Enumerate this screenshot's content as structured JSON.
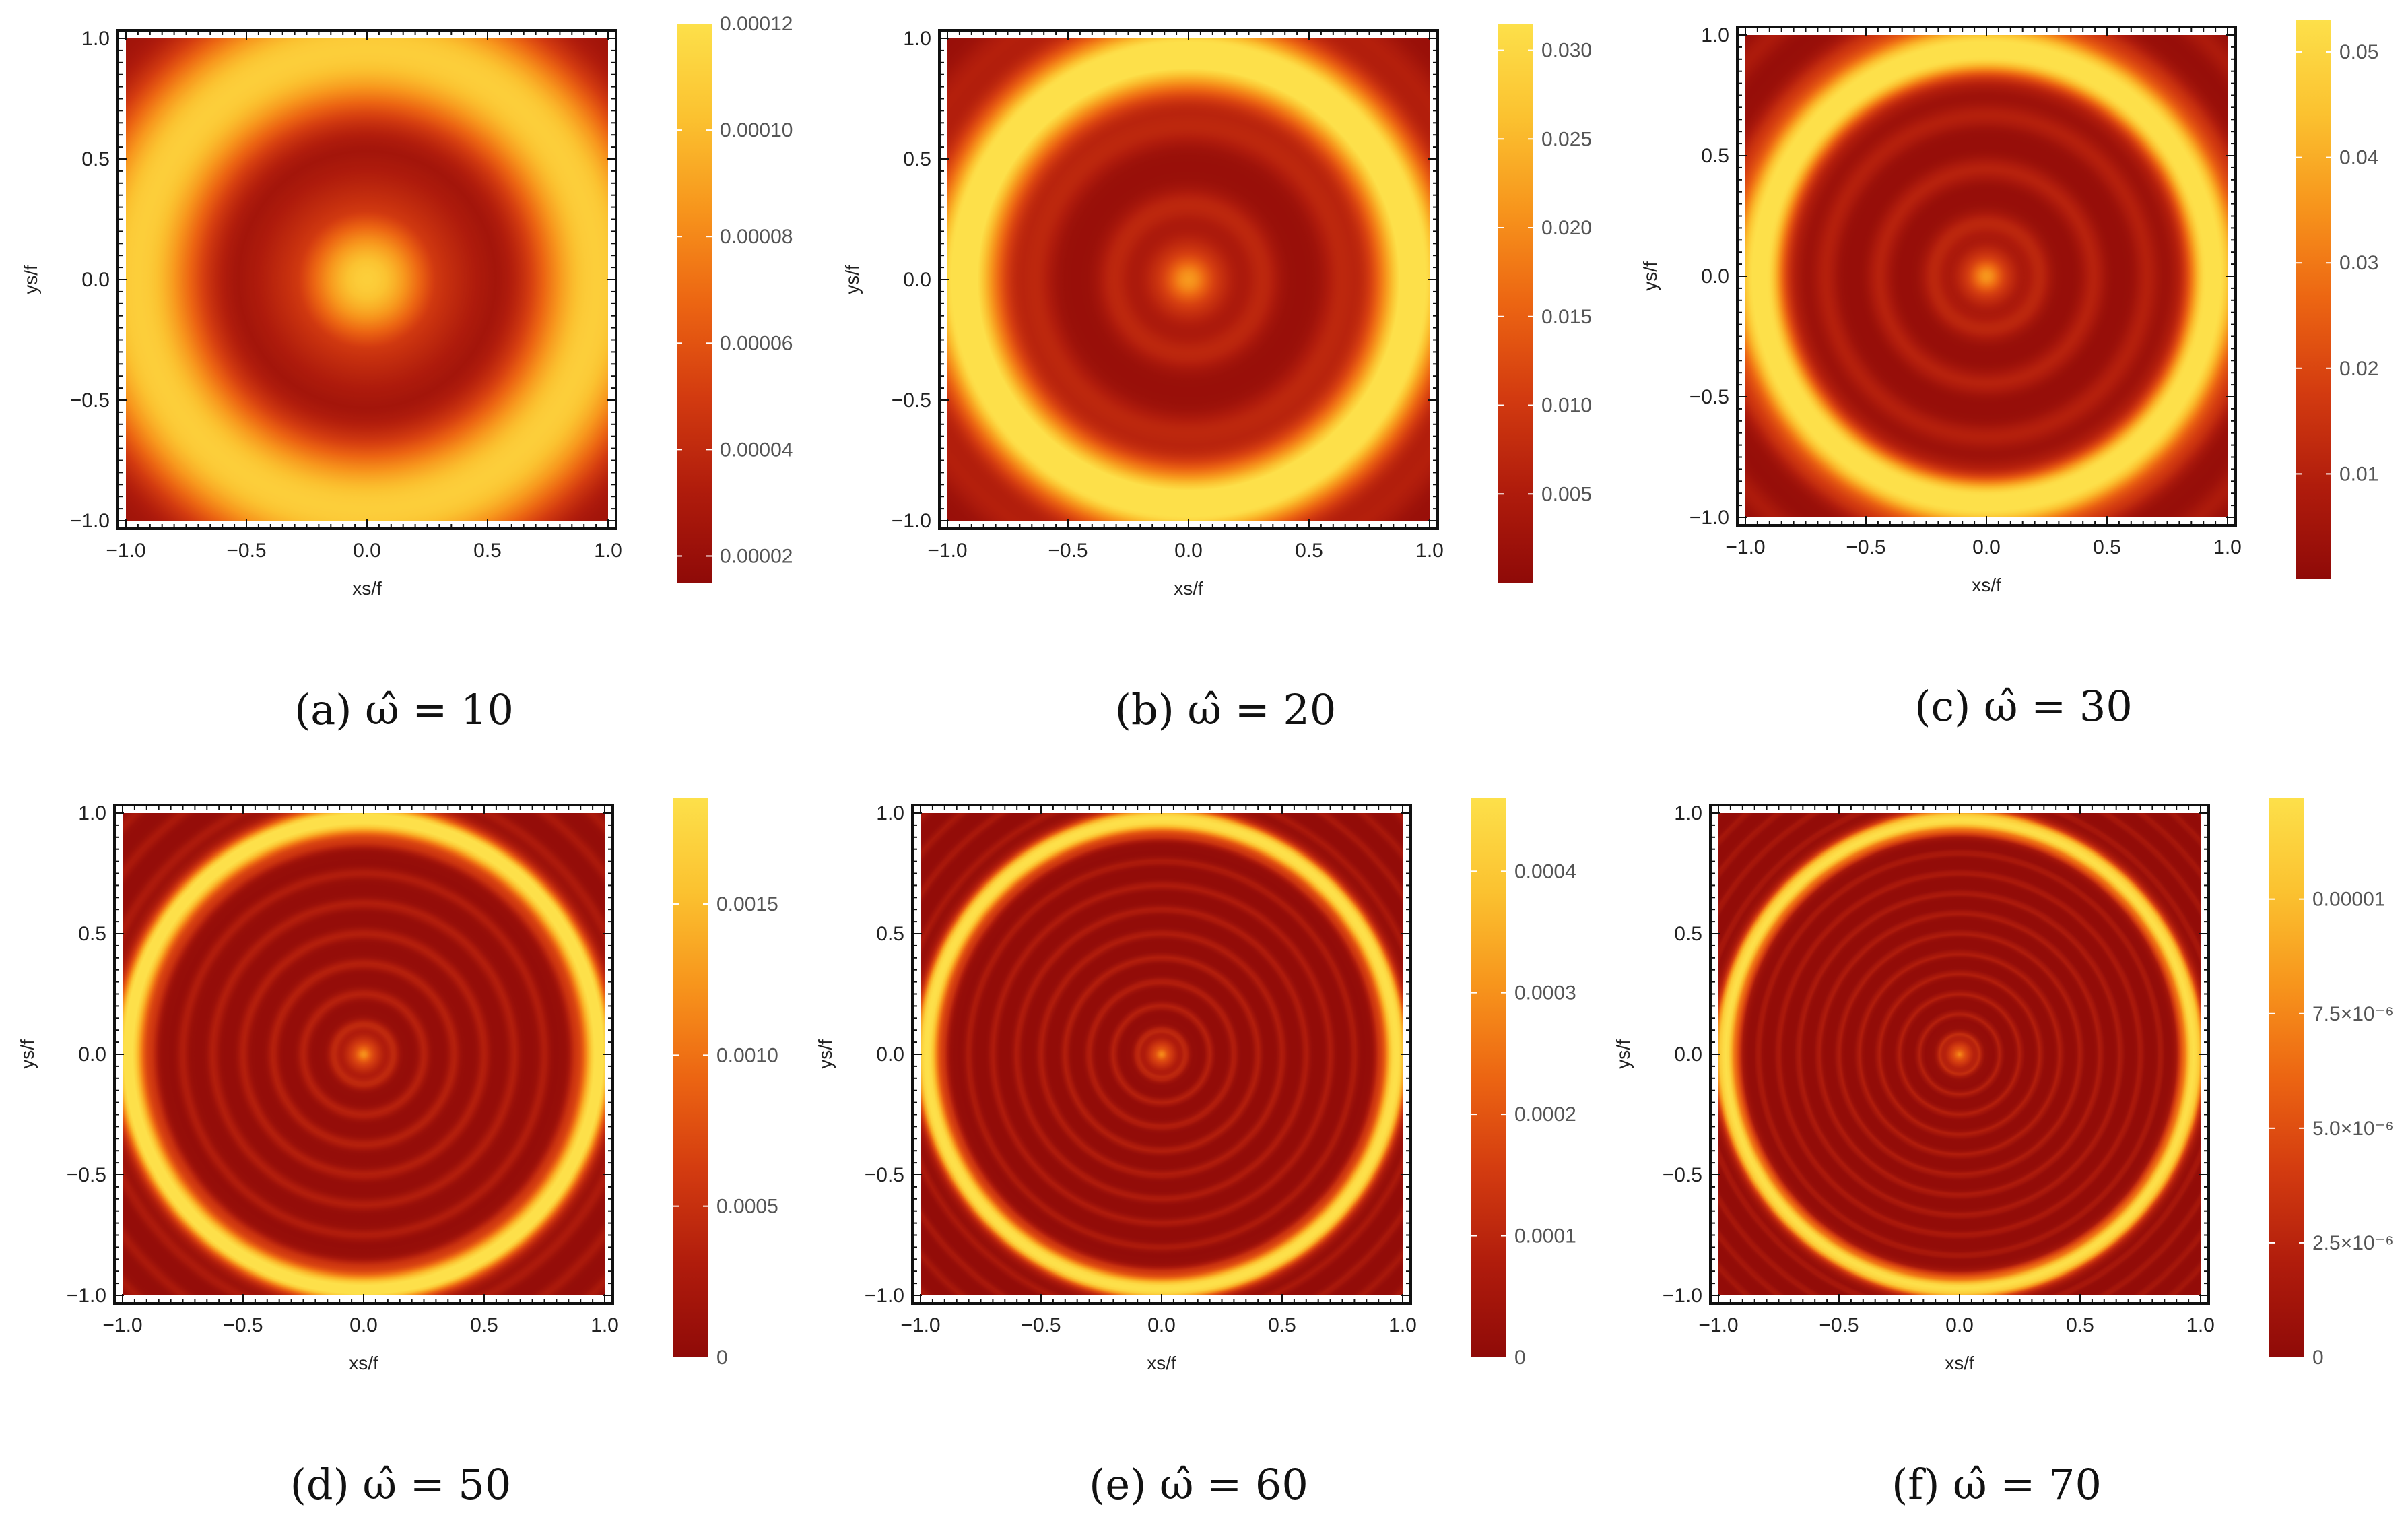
{
  "chart_data": [
    {
      "type": "heatmap",
      "caption": "(a) ω̂ = 10",
      "omega": 10,
      "xlabel": "xs/f",
      "ylabel": "ys/f",
      "xlim": [
        -1.0,
        1.0
      ],
      "ylim": [
        -1.0,
        1.0
      ],
      "xticks": [
        "−1.0",
        "−0.5",
        "0.0",
        "0.5",
        "1.0"
      ],
      "yticks": [
        "−1.0",
        "−0.5",
        "0.0",
        "0.5",
        "1.0"
      ],
      "colorbar": {
        "min": 1.5e-05,
        "max": 0.00012,
        "ticks": [
          2e-05,
          4e-05,
          6e-05,
          8e-05,
          0.0001,
          0.00012
        ],
        "tick_labels": [
          "0.00002",
          "0.00004",
          "0.00006",
          "0.00008",
          "0.00010",
          "0.00012"
        ]
      },
      "pattern": {
        "rings": 1.1,
        "ring_sharpness": 1,
        "peak_radius": 1.0,
        "peak_width": 0.45,
        "background": 0.0
      }
    },
    {
      "type": "heatmap",
      "caption": "(b) ω̂ = 20",
      "omega": 20,
      "xlabel": "xs/f",
      "ylabel": "ys/f",
      "xlim": [
        -1.0,
        1.0
      ],
      "ylim": [
        -1.0,
        1.0
      ],
      "xticks": [
        "−1.0",
        "−0.5",
        "0.0",
        "0.5",
        "1.0"
      ],
      "yticks": [
        "−1.0",
        "−0.5",
        "0.0",
        "0.5",
        "1.0"
      ],
      "colorbar": {
        "min": 0.0,
        "max": 0.0315,
        "ticks": [
          0.005,
          0.01,
          0.015,
          0.02,
          0.025,
          0.03
        ],
        "tick_labels": [
          "0.005",
          "0.010",
          "0.015",
          "0.020",
          "0.025",
          "0.030"
        ]
      },
      "pattern": {
        "rings": 3.2,
        "ring_sharpness": 2,
        "peak_radius": 0.93,
        "peak_width": 0.16,
        "background": 0.05
      }
    },
    {
      "type": "heatmap",
      "caption": "(c) ω̂ = 30",
      "omega": 30,
      "xlabel": "xs/f",
      "ylabel": "ys/f",
      "xlim": [
        -1.0,
        1.0
      ],
      "ylim": [
        -1.0,
        1.0
      ],
      "xticks": [
        "−1.0",
        "−0.5",
        "0.0",
        "0.5",
        "1.0"
      ],
      "yticks": [
        "−1.0",
        "−0.5",
        "0.0",
        "0.5",
        "1.0"
      ],
      "colorbar": {
        "min": 0.0,
        "max": 0.053,
        "ticks": [
          0.01,
          0.02,
          0.03,
          0.04,
          0.05
        ],
        "tick_labels": [
          "0.01",
          "0.02",
          "0.03",
          "0.04",
          "0.05"
        ]
      },
      "pattern": {
        "rings": 4.5,
        "ring_sharpness": 2,
        "peak_radius": 0.95,
        "peak_width": 0.11,
        "background": 0.04
      }
    },
    {
      "type": "heatmap",
      "caption": "(d) ω̂ = 50",
      "omega": 50,
      "xlabel": "xs/f",
      "ylabel": "ys/f",
      "xlim": [
        -1.0,
        1.0
      ],
      "ylim": [
        -1.0,
        1.0
      ],
      "xticks": [
        "−1.0",
        "−0.5",
        "0.0",
        "0.5",
        "1.0"
      ],
      "yticks": [
        "−1.0",
        "−0.5",
        "0.0",
        "0.5",
        "1.0"
      ],
      "colorbar": {
        "min": 0.0,
        "max": 0.00185,
        "ticks": [
          0,
          0.0005,
          0.001,
          0.0015
        ],
        "tick_labels": [
          "0",
          "0.0005",
          "0.0010",
          "0.0015"
        ]
      },
      "pattern": {
        "rings": 8,
        "ring_sharpness": 3,
        "peak_radius": 0.97,
        "peak_width": 0.065,
        "background": 0.03
      }
    },
    {
      "type": "heatmap",
      "caption": "(e) ω̂ = 60",
      "omega": 60,
      "xlabel": "xs/f",
      "ylabel": "ys/f",
      "xlim": [
        -1.0,
        1.0
      ],
      "ylim": [
        -1.0,
        1.0
      ],
      "xticks": [
        "−1.0",
        "−0.5",
        "0.0",
        "0.5",
        "1.0"
      ],
      "yticks": [
        "−1.0",
        "−0.5",
        "0.0",
        "0.5",
        "1.0"
      ],
      "colorbar": {
        "min": 0.0,
        "max": 0.00046,
        "ticks": [
          0,
          0.0001,
          0.0002,
          0.0003,
          0.0004
        ],
        "tick_labels": [
          "0",
          "0.0001",
          "0.0002",
          "0.0003",
          "0.0004"
        ]
      },
      "pattern": {
        "rings": 10,
        "ring_sharpness": 4,
        "peak_radius": 0.97,
        "peak_width": 0.05,
        "background": 0.02
      }
    },
    {
      "type": "heatmap",
      "caption": "(f) ω̂ = 70",
      "omega": 70,
      "xlabel": "xs/f",
      "ylabel": "ys/f",
      "xlim": [
        -1.0,
        1.0
      ],
      "ylim": [
        -1.0,
        1.0
      ],
      "xticks": [
        "−1.0",
        "−0.5",
        "0.0",
        "0.5",
        "1.0"
      ],
      "yticks": [
        "−1.0",
        "−0.5",
        "0.0",
        "0.5",
        "1.0"
      ],
      "colorbar": {
        "min": 0.0,
        "max": 1.22e-05,
        "ticks": [
          0,
          2.5e-06,
          5e-06,
          7.5e-06,
          1e-05
        ],
        "tick_labels": [
          "0",
          "2.5×10⁻⁶",
          "5.0×10⁻⁶",
          "7.5×10⁻⁶",
          "0.00001"
        ]
      },
      "pattern": {
        "rings": 12,
        "ring_sharpness": 5,
        "peak_radius": 0.97,
        "peak_width": 0.045,
        "background": 0.02
      }
    }
  ],
  "colormap": [
    "#8f0a08",
    "#b01c0c",
    "#d33b10",
    "#ec6512",
    "#f7951c",
    "#fbc230",
    "#fde04a"
  ]
}
